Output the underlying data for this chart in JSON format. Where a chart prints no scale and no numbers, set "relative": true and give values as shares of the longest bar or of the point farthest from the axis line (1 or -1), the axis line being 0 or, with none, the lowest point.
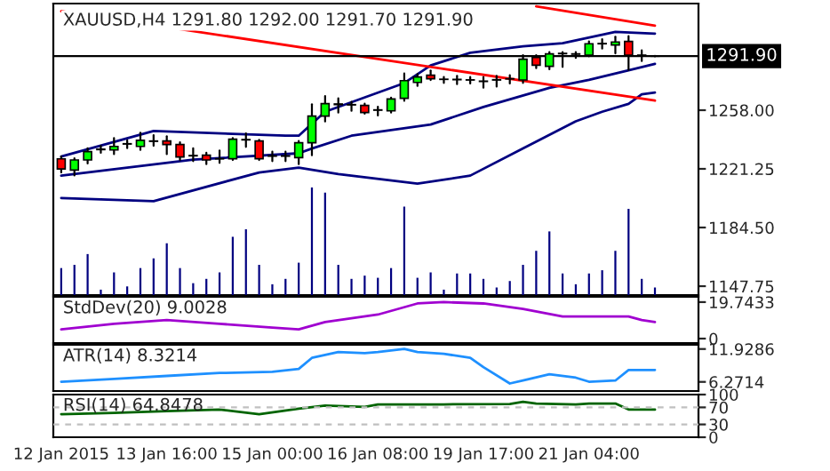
{
  "chart_data": [
    {
      "type": "candlestick",
      "title": "XAUUSD,H4 1291.80 1292.00 1291.70 1291.90",
      "categories": [
        null,
        null,
        null,
        null,
        null,
        null,
        null,
        null,
        null,
        null,
        null,
        null,
        null,
        null,
        null,
        null,
        null,
        null,
        null,
        null,
        null,
        null,
        null,
        null,
        null,
        null,
        null,
        null,
        null,
        null,
        null,
        null,
        null,
        null,
        null,
        null,
        null,
        null,
        null,
        null,
        null,
        null,
        null,
        null,
        null,
        null
      ],
      "ohlc": [
        [
          1227.5,
          1229.0,
          1219.0,
          1221.2
        ],
        [
          1220.5,
          1227.9,
          1217.1,
          1226.8
        ],
        [
          1226.8,
          1234.2,
          1224.6,
          1232.0
        ],
        [
          1233.3,
          1235.7,
          1231.3,
          1233.6
        ],
        [
          1233.1,
          1240.5,
          1230.5,
          1235.3
        ],
        [
          1236.8,
          1239.1,
          1234.2,
          1237.0
        ],
        [
          1235.3,
          1243.9,
          1233.1,
          1239.1
        ],
        [
          1238.7,
          1242.4,
          1235.7,
          1238.5
        ],
        [
          1238.7,
          1241.7,
          1230.5,
          1236.5
        ],
        [
          1236.5,
          1237.9,
          1226.8,
          1228.7
        ],
        [
          1229.4,
          1234.2,
          1226.1,
          1229.6
        ],
        [
          1229.8,
          1231.3,
          1224.2,
          1226.8
        ],
        [
          1227.6,
          1232.7,
          1225.0,
          1227.5
        ],
        [
          1227.6,
          1240.5,
          1226.8,
          1239.8
        ],
        [
          1239.4,
          1243.5,
          1235.0,
          1239.6
        ],
        [
          1238.7,
          1239.4,
          1226.8,
          1227.6
        ],
        [
          1229.4,
          1232.0,
          1226.1,
          1229.2
        ],
        [
          1229.2,
          1232.0,
          1226.1,
          1229.4
        ],
        [
          1228.3,
          1238.7,
          1224.2,
          1237.6
        ],
        [
          1237.6,
          1261.7,
          1229.8,
          1254.3
        ],
        [
          1254.3,
          1266.9,
          1250.9,
          1262.1
        ],
        [
          1261.5,
          1265.4,
          1256.5,
          1261.9
        ],
        [
          1261.5,
          1263.2,
          1257.6,
          1261.3
        ],
        [
          1261.0,
          1262.1,
          1255.8,
          1256.5
        ],
        [
          1258.0,
          1260.2,
          1254.7,
          1258.2
        ],
        [
          1257.6,
          1265.8,
          1256.5,
          1265.0
        ],
        [
          1265.4,
          1281.0,
          1263.9,
          1276.5
        ],
        [
          1275.4,
          1280.6,
          1273.2,
          1278.8
        ],
        [
          1279.9,
          1282.9,
          1276.9,
          1277.7
        ],
        [
          1277.3,
          1278.8,
          1275.1,
          1277.4
        ],
        [
          1277.3,
          1279.5,
          1274.3,
          1277.1
        ],
        [
          1276.9,
          1278.8,
          1274.7,
          1277.0
        ],
        [
          1276.2,
          1278.8,
          1272.1,
          1276.0
        ],
        [
          1276.9,
          1279.5,
          1272.8,
          1277.1
        ],
        [
          1277.7,
          1279.9,
          1274.7,
          1277.6
        ],
        [
          1276.9,
          1292.5,
          1275.1,
          1289.9
        ],
        [
          1291.0,
          1292.5,
          1284.3,
          1286.2
        ],
        [
          1285.5,
          1294.4,
          1283.6,
          1293.3
        ],
        [
          1293.6,
          1294.4,
          1285.1,
          1293.4
        ],
        [
          1293.1,
          1294.4,
          1290.7,
          1293.3
        ],
        [
          1292.5,
          1301.1,
          1291.8,
          1299.6
        ],
        [
          1299.6,
          1302.5,
          1296.6,
          1299.8
        ],
        [
          1298.8,
          1304.0,
          1293.6,
          1300.7
        ],
        [
          1301.1,
          1304.4,
          1283.2,
          1292.5
        ],
        [
          1292.5,
          1295.5,
          1288.8,
          1292.3
        ],
        [
          1291.8,
          1292.0,
          1291.7,
          1291.9
        ]
      ],
      "colors": [
        "#ff0000",
        "#00ff00",
        "#00ff00",
        "#000000",
        "#00ff00",
        "#000000",
        "#00ff00",
        "#000000",
        "#ff0000",
        "#ff0000",
        "#000000",
        "#ff0000",
        "#000000",
        "#00ff00",
        "#000000",
        "#ff0000",
        "#000000",
        "#000000",
        "#00ff00",
        "#00ff00",
        "#00ff00",
        "#000000",
        "#000000",
        "#ff0000",
        "#000000",
        "#00ff00",
        "#00ff00",
        "#00ff00",
        "#ff0000",
        "#000000",
        "#000000",
        "#000000",
        "#000000",
        "#000000",
        "#000000",
        "#00ff00",
        "#ff0000",
        "#00ff00",
        "#000000",
        "#000000",
        "#00ff00",
        "#000000",
        "#00ff00",
        "#ff0000",
        "#000000",
        "#000000"
      ],
      "series": [
        {
          "type": "line",
          "color": "#000080",
          "values": [
            1229,
            null,
            null,
            null,
            null,
            null,
            null,
            1245,
            null,
            null,
            null,
            null,
            null,
            null,
            null,
            null,
            null,
            1242,
            1242,
            null,
            1257,
            null,
            null,
            null,
            null,
            null,
            1275,
            null,
            1286,
            null,
            null,
            1294,
            null,
            null,
            null,
            1298,
            null,
            null,
            1300,
            null,
            null,
            null,
            1307,
            null,
            null,
            1306
          ]
        },
        {
          "type": "line",
          "color": "#000080",
          "values": [
            1217,
            null,
            null,
            null,
            null,
            null,
            null,
            null,
            null,
            null,
            1227,
            null,
            null,
            null,
            null,
            null,
            null,
            null,
            1231,
            1234,
            null,
            null,
            1242,
            null,
            null,
            null,
            null,
            null,
            1249,
            null,
            null,
            null,
            1260,
            null,
            null,
            null,
            null,
            1272,
            null,
            null,
            1277,
            null,
            null,
            1283,
            null,
            1287
          ]
        },
        {
          "type": "line",
          "color": "#000080",
          "values": [
            1203,
            null,
            null,
            null,
            null,
            null,
            null,
            1201,
            null,
            null,
            null,
            null,
            null,
            null,
            null,
            1219,
            null,
            null,
            1222,
            null,
            null,
            1218,
            null,
            null,
            null,
            null,
            null,
            1212,
            null,
            null,
            null,
            1217,
            null,
            null,
            null,
            1234,
            null,
            null,
            null,
            1251,
            null,
            1257,
            null,
            1262,
            1268,
            1269
          ]
        },
        {
          "type": "line",
          "color": "#ff0000",
          "values": [
            1320,
            null,
            null,
            null,
            null,
            null,
            null,
            null,
            null,
            null,
            null,
            null,
            null,
            null,
            null,
            null,
            null,
            null,
            null,
            null,
            null,
            null,
            null,
            null,
            null,
            null,
            null,
            null,
            null,
            null,
            null,
            null,
            null,
            null,
            null,
            null,
            null,
            null,
            null,
            null,
            null,
            null,
            null,
            null,
            null,
            1264
          ]
        },
        {
          "type": "line",
          "color": "#ff0000",
          "values": [
            null,
            null,
            null,
            null,
            null,
            null,
            null,
            null,
            null,
            null,
            null,
            null,
            null,
            null,
            null,
            null,
            null,
            null,
            null,
            null,
            null,
            null,
            null,
            null,
            null,
            null,
            null,
            null,
            null,
            null,
            null,
            null,
            null,
            null,
            null,
            null,
            1323,
            null,
            null,
            null,
            null,
            null,
            null,
            null,
            null,
            1311
          ]
        }
      ],
      "ylim": [
        1142.2,
        1324.8
      ],
      "yticks": [
        1147.75,
        {
          "value": 1184.5,
          "label": "1184.50"
        },
        1221.25,
        {
          "value": 1258,
          "label": "1258.00"
        }
      ],
      "ref_lines": [
        {
          "axis": "y",
          "value": 1291.9,
          "label": "1291.90",
          "color": "#000000"
        }
      ],
      "tick_labels": "y"
    },
    {
      "type": "bar",
      "relative": true,
      "color": "#000080",
      "categories": [
        null,
        null,
        null,
        null,
        null,
        null,
        null,
        null,
        null,
        null,
        null,
        null,
        null,
        null,
        null,
        null,
        null,
        null,
        null,
        null,
        null,
        null,
        null,
        null,
        null,
        null,
        null,
        null,
        null,
        null,
        null,
        null,
        null,
        null,
        null,
        null,
        null,
        null,
        null,
        null,
        null,
        null,
        null,
        null,
        null,
        null
      ],
      "values": [
        0.25,
        0.28,
        0.38,
        0.05,
        0.21,
        0.08,
        0.25,
        0.34,
        0.48,
        0.25,
        0.11,
        0.15,
        0.21,
        0.54,
        0.61,
        0.28,
        0.1,
        0.15,
        0.3,
        1,
        0.95,
        0.28,
        0.15,
        0.18,
        0.16,
        0.25,
        0.82,
        0.16,
        0.21,
        0.05,
        0.2,
        0.2,
        0.15,
        0.07,
        0.13,
        0.28,
        0.41,
        0.59,
        0.2,
        0.1,
        0.2,
        0.23,
        0.41,
        0.8,
        0.15,
        0.07
      ],
      "tick_labels": false
    },
    {
      "type": "line",
      "title": "StdDev(20) 9.0028",
      "categories": [
        null,
        null,
        null,
        null,
        null,
        null,
        null,
        null,
        null,
        null,
        null,
        null,
        null,
        null,
        null,
        null,
        null,
        null,
        null,
        null,
        null,
        null,
        null,
        null,
        null,
        null,
        null,
        null,
        null,
        null,
        null,
        null,
        null,
        null,
        null,
        null,
        null,
        null,
        null,
        null,
        null,
        null,
        null,
        null,
        null,
        null
      ],
      "series": [
        {
          "color": "#a000d0",
          "values": [
            5,
            null,
            null,
            null,
            8,
            null,
            null,
            null,
            10,
            null,
            null,
            null,
            8,
            null,
            null,
            null,
            6,
            null,
            5,
            null,
            9,
            null,
            null,
            null,
            13,
            null,
            null,
            19,
            null,
            19.7433,
            null,
            null,
            19,
            null,
            null,
            16,
            null,
            null,
            12,
            null,
            12,
            null,
            null,
            12,
            10,
            9.0028
          ]
        }
      ],
      "ylim": [
        -2.4,
        22.6
      ],
      "yticks": [
        19.7433,
        0
      ],
      "tick_labels": "y"
    },
    {
      "type": "line",
      "title": "ATR(14) 8.3214",
      "categories": [
        null,
        null,
        null,
        null,
        null,
        null,
        null,
        null,
        null,
        null,
        null,
        null,
        null,
        null,
        null,
        null,
        null,
        null,
        null,
        null,
        null,
        null,
        null,
        null,
        null,
        null,
        null,
        null,
        null,
        null,
        null,
        null,
        null,
        null,
        null,
        null,
        null,
        null,
        null,
        null,
        null,
        null,
        null,
        null,
        null,
        null
      ],
      "series": [
        {
          "color": "#1e90ff",
          "values": [
            6.3,
            null,
            null,
            null,
            6.8,
            null,
            null,
            null,
            7.3,
            null,
            null,
            null,
            7.8,
            null,
            null,
            null,
            8.0,
            null,
            8.5,
            10.4,
            null,
            11.4,
            null,
            11.2,
            11.4,
            null,
            11.9286,
            11.4,
            null,
            11.1,
            null,
            10.4,
            8.8,
            null,
            6.0,
            6.5,
            null,
            7.6,
            null,
            7.0,
            6.3,
            null,
            6.5,
            8.3,
            null,
            8.3214
          ]
        }
      ],
      "ylim": [
        4.7,
        12.65
      ],
      "yticks": [
        11.9286,
        6.2714
      ],
      "tick_labels": "y"
    },
    {
      "type": "line",
      "title": "RSI(14) 64.8478",
      "categories": [
        "12 Jan 2015",
        null,
        null,
        null,
        null,
        null,
        null,
        null,
        "13 Jan 16:00",
        null,
        null,
        null,
        null,
        null,
        null,
        null,
        "15 Jan 00:00",
        null,
        null,
        null,
        null,
        null,
        null,
        null,
        "16 Jan 08:00",
        null,
        null,
        null,
        null,
        null,
        null,
        null,
        "19 Jan 17:00",
        null,
        null,
        null,
        null,
        null,
        null,
        null,
        "21 Jan 04:00",
        null,
        null,
        null,
        null,
        null
      ],
      "series": [
        {
          "color": "#006400",
          "values": [
            54,
            null,
            null,
            null,
            57,
            null,
            null,
            null,
            61,
            null,
            null,
            null,
            65,
            null,
            null,
            54,
            null,
            null,
            67,
            null,
            74,
            null,
            null,
            71,
            77,
            null,
            null,
            null,
            null,
            77,
            null,
            null,
            null,
            null,
            78,
            83,
            79,
            null,
            null,
            77,
            79,
            null,
            79,
            65,
            null,
            64.8478
          ]
        }
      ],
      "ylim": [
        0,
        100
      ],
      "yticks": [
        100,
        70,
        30,
        0
      ],
      "ref_lines": [
        {
          "axis": "y",
          "value": 70,
          "line_style": "dashed",
          "color": "#c0c0c0"
        },
        {
          "axis": "y",
          "value": 30,
          "line_style": "dashed",
          "color": "#c0c0c0"
        }
      ]
    }
  ]
}
